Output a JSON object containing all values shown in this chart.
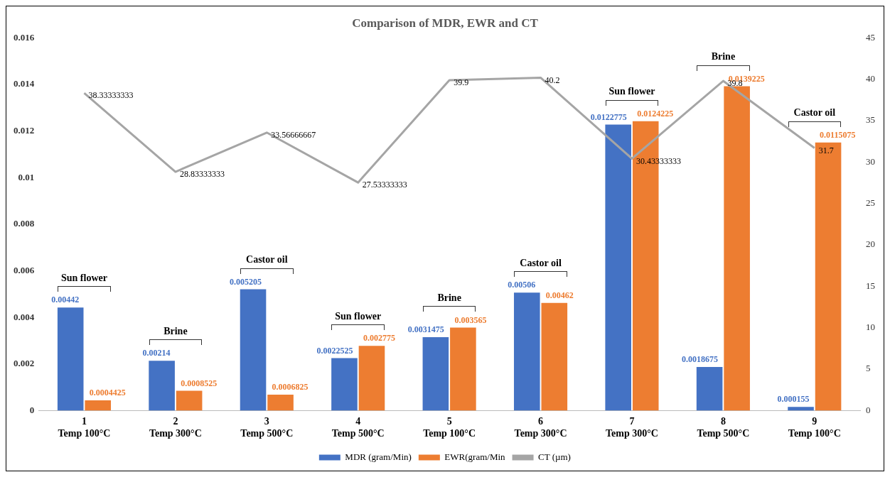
{
  "chart_data": {
    "type": "bar",
    "title": "Comparison of MDR, EWR and CT",
    "categories": [
      "1\nTemp 100°C",
      "2\nTemp 300°C",
      "3\nTemp 500°C",
      "4\nTemp 500°C",
      "5\nTemp 100°C",
      "6\nTemp 300°C",
      "7\nTemp 300°C",
      "8\nTemp 500°C",
      "9\nTemp 100°C"
    ],
    "series": [
      {
        "name": "MDR (gram/Min)",
        "color": "#4472c4",
        "values": [
          0.00442,
          0.00214,
          0.005205,
          0.0022525,
          0.0031475,
          0.00506,
          0.0122775,
          0.0018675,
          0.000155
        ]
      },
      {
        "name": "EWR(gram/Min",
        "color": "#ed7d31",
        "values": [
          0.0004425,
          0.0008525,
          0.0006825,
          0.002775,
          0.003565,
          0.00462,
          0.0124225,
          0.0139225,
          0.0115075
        ]
      },
      {
        "name": "CT (µm)",
        "type": "line",
        "axis": "y2",
        "color": "#a5a5a5",
        "marker": "none",
        "values": [
          38.33333333,
          28.83333333,
          33.56666667,
          27.53333333,
          39.9,
          40.2,
          30.43333333,
          39.8,
          31.7
        ]
      }
    ],
    "ylim": [
      0,
      0.016
    ],
    "yticks": [
      0,
      0.002,
      0.004,
      0.006,
      0.008,
      0.01,
      0.012,
      0.014,
      0.016
    ],
    "y2lim": [
      0,
      45
    ],
    "y2ticks": [
      0,
      5,
      10,
      15,
      20,
      25,
      30,
      35,
      40,
      45
    ],
    "grid": false,
    "legend": "bottom",
    "data_labels": true,
    "annotations": [
      "Sun flower",
      "Brine",
      "Castor oil",
      "Sun flower",
      "Brine",
      "Castor oil",
      "Sun flower",
      "Brine",
      "Castor oil"
    ]
  }
}
